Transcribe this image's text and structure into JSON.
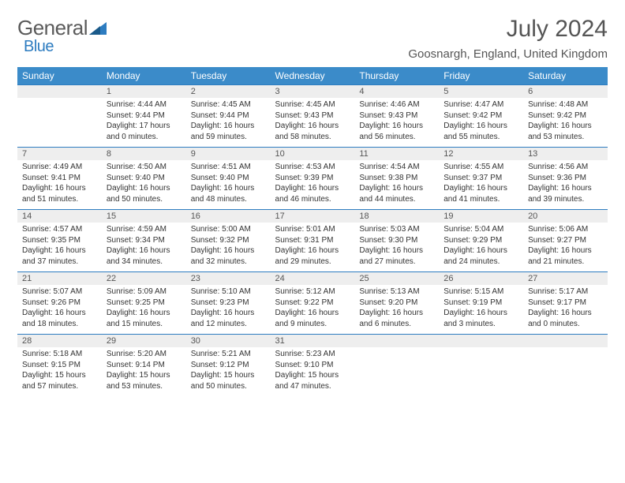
{
  "brand": {
    "text1": "General",
    "text2": "Blue"
  },
  "title": "July 2024",
  "location": "Goosnargh, England, United Kingdom",
  "colors": {
    "headerBg": "#3b8bc9",
    "accent": "#2d7cc0",
    "dayBg": "#eeeeee"
  },
  "weekdays": [
    "Sunday",
    "Monday",
    "Tuesday",
    "Wednesday",
    "Thursday",
    "Friday",
    "Saturday"
  ],
  "startOffset": 1,
  "daysInMonth": 31,
  "days": {
    "1": {
      "sr": "4:44 AM",
      "ss": "9:44 PM",
      "dl": "17 hours and 0 minutes."
    },
    "2": {
      "sr": "4:45 AM",
      "ss": "9:44 PM",
      "dl": "16 hours and 59 minutes."
    },
    "3": {
      "sr": "4:45 AM",
      "ss": "9:43 PM",
      "dl": "16 hours and 58 minutes."
    },
    "4": {
      "sr": "4:46 AM",
      "ss": "9:43 PM",
      "dl": "16 hours and 56 minutes."
    },
    "5": {
      "sr": "4:47 AM",
      "ss": "9:42 PM",
      "dl": "16 hours and 55 minutes."
    },
    "6": {
      "sr": "4:48 AM",
      "ss": "9:42 PM",
      "dl": "16 hours and 53 minutes."
    },
    "7": {
      "sr": "4:49 AM",
      "ss": "9:41 PM",
      "dl": "16 hours and 51 minutes."
    },
    "8": {
      "sr": "4:50 AM",
      "ss": "9:40 PM",
      "dl": "16 hours and 50 minutes."
    },
    "9": {
      "sr": "4:51 AM",
      "ss": "9:40 PM",
      "dl": "16 hours and 48 minutes."
    },
    "10": {
      "sr": "4:53 AM",
      "ss": "9:39 PM",
      "dl": "16 hours and 46 minutes."
    },
    "11": {
      "sr": "4:54 AM",
      "ss": "9:38 PM",
      "dl": "16 hours and 44 minutes."
    },
    "12": {
      "sr": "4:55 AM",
      "ss": "9:37 PM",
      "dl": "16 hours and 41 minutes."
    },
    "13": {
      "sr": "4:56 AM",
      "ss": "9:36 PM",
      "dl": "16 hours and 39 minutes."
    },
    "14": {
      "sr": "4:57 AM",
      "ss": "9:35 PM",
      "dl": "16 hours and 37 minutes."
    },
    "15": {
      "sr": "4:59 AM",
      "ss": "9:34 PM",
      "dl": "16 hours and 34 minutes."
    },
    "16": {
      "sr": "5:00 AM",
      "ss": "9:32 PM",
      "dl": "16 hours and 32 minutes."
    },
    "17": {
      "sr": "5:01 AM",
      "ss": "9:31 PM",
      "dl": "16 hours and 29 minutes."
    },
    "18": {
      "sr": "5:03 AM",
      "ss": "9:30 PM",
      "dl": "16 hours and 27 minutes."
    },
    "19": {
      "sr": "5:04 AM",
      "ss": "9:29 PM",
      "dl": "16 hours and 24 minutes."
    },
    "20": {
      "sr": "5:06 AM",
      "ss": "9:27 PM",
      "dl": "16 hours and 21 minutes."
    },
    "21": {
      "sr": "5:07 AM",
      "ss": "9:26 PM",
      "dl": "16 hours and 18 minutes."
    },
    "22": {
      "sr": "5:09 AM",
      "ss": "9:25 PM",
      "dl": "16 hours and 15 minutes."
    },
    "23": {
      "sr": "5:10 AM",
      "ss": "9:23 PM",
      "dl": "16 hours and 12 minutes."
    },
    "24": {
      "sr": "5:12 AM",
      "ss": "9:22 PM",
      "dl": "16 hours and 9 minutes."
    },
    "25": {
      "sr": "5:13 AM",
      "ss": "9:20 PM",
      "dl": "16 hours and 6 minutes."
    },
    "26": {
      "sr": "5:15 AM",
      "ss": "9:19 PM",
      "dl": "16 hours and 3 minutes."
    },
    "27": {
      "sr": "5:17 AM",
      "ss": "9:17 PM",
      "dl": "16 hours and 0 minutes."
    },
    "28": {
      "sr": "5:18 AM",
      "ss": "9:15 PM",
      "dl": "15 hours and 57 minutes."
    },
    "29": {
      "sr": "5:20 AM",
      "ss": "9:14 PM",
      "dl": "15 hours and 53 minutes."
    },
    "30": {
      "sr": "5:21 AM",
      "ss": "9:12 PM",
      "dl": "15 hours and 50 minutes."
    },
    "31": {
      "sr": "5:23 AM",
      "ss": "9:10 PM",
      "dl": "15 hours and 47 minutes."
    }
  }
}
